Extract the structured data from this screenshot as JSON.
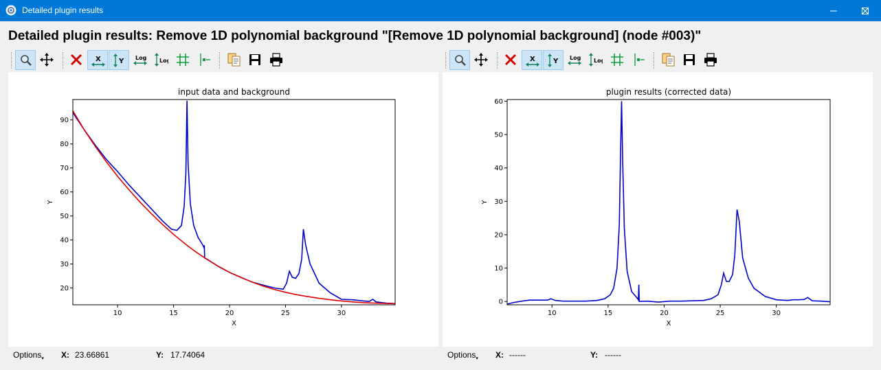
{
  "window": {
    "title": "Detailed plugin results",
    "controls": [
      "minimize-icon",
      "maximize-icon",
      "close-icon"
    ]
  },
  "heading": "Detailed plugin results: Remove 1D polynomial background \"[Remove 1D polynomial background] (node #003)\"",
  "toolbar_icons": [
    "zoom-icon",
    "pan-icon",
    "clear-icon",
    "x-autoscale-icon",
    "y-autoscale-icon",
    "x-log-icon",
    "y-log-icon",
    "grid-icon",
    "marker-icon",
    "copy-icon",
    "save-icon",
    "print-icon"
  ],
  "toolbar_log_label": "Log",
  "toolbar_x_label": "X",
  "toolbar_y_label": "Y",
  "colors": {
    "titlebar": "#0078d7",
    "series_blue": "#0000cc",
    "series_red": "#e00000",
    "active_button": "#cce4f7"
  },
  "left_status": {
    "options": "Options",
    "x_label": "X:",
    "x_value": "23.66861",
    "y_label": "Y:",
    "y_value": "17.74064"
  },
  "right_status": {
    "options": "Options",
    "x_label": "X:",
    "x_value": "------",
    "y_label": "Y:",
    "y_value": "------"
  },
  "chart_data": [
    {
      "type": "line",
      "title": "input data and background",
      "xlabel": "X",
      "ylabel": "Y",
      "xlim": [
        6.0,
        34.8
      ],
      "ylim": [
        13.0,
        98.5
      ],
      "xticks": [
        10,
        15,
        20,
        25,
        30
      ],
      "yticks": [
        20,
        30,
        40,
        50,
        60,
        70,
        80,
        90
      ],
      "grid": false,
      "series": [
        {
          "color": "#0000cc",
          "points": [
            [
              6.0,
              93
            ],
            [
              7,
              86
            ],
            [
              8,
              79.5
            ],
            [
              9,
              73.5
            ],
            [
              10,
              68.5
            ],
            [
              11,
              63
            ],
            [
              12,
              58
            ],
            [
              13,
              53
            ],
            [
              14,
              48
            ],
            [
              14.8,
              44.5
            ],
            [
              15.3,
              44
            ],
            [
              15.7,
              46
            ],
            [
              15.95,
              54
            ],
            [
              16.1,
              68
            ],
            [
              16.2,
              98
            ],
            [
              16.3,
              72
            ],
            [
              16.5,
              55
            ],
            [
              16.8,
              46
            ],
            [
              17.2,
              41
            ],
            [
              17.6,
              38
            ],
            [
              17.7,
              37
            ],
            [
              17.75,
              37.8
            ],
            [
              17.78,
              32.5
            ],
            [
              18,
              32
            ],
            [
              19,
              29
            ],
            [
              20,
              26.5
            ],
            [
              21,
              24.5
            ],
            [
              22,
              22.5
            ],
            [
              23,
              21.2
            ],
            [
              24,
              20
            ],
            [
              24.8,
              19.5
            ],
            [
              25.1,
              22
            ],
            [
              25.35,
              27
            ],
            [
              25.6,
              24.5
            ],
            [
              25.9,
              24
            ],
            [
              26.2,
              26
            ],
            [
              26.45,
              32
            ],
            [
              26.6,
              44.5
            ],
            [
              26.8,
              38
            ],
            [
              27.2,
              30
            ],
            [
              28,
              22
            ],
            [
              29,
              18
            ],
            [
              30,
              15.3
            ],
            [
              31,
              15.1
            ],
            [
              32,
              14.6
            ],
            [
              32.5,
              14.4
            ],
            [
              32.8,
              15.3
            ],
            [
              33.1,
              14.2
            ],
            [
              34,
              13.7
            ],
            [
              34.8,
              13.5
            ]
          ]
        },
        {
          "color": "#e00000",
          "points": [
            [
              6.0,
              93.8
            ],
            [
              7,
              86
            ],
            [
              8,
              79
            ],
            [
              9,
              72.5
            ],
            [
              10,
              66.5
            ],
            [
              11,
              61
            ],
            [
              12,
              55.8
            ],
            [
              13,
              51
            ],
            [
              14,
              46.5
            ],
            [
              15,
              42.3
            ],
            [
              16,
              38.5
            ],
            [
              17,
              35
            ],
            [
              18,
              31.9
            ],
            [
              19,
              29
            ],
            [
              20,
              26.5
            ],
            [
              21,
              24.4
            ],
            [
              22,
              22.5
            ],
            [
              23,
              20.8
            ],
            [
              24,
              19.4
            ],
            [
              25,
              18.2
            ],
            [
              26,
              17.2
            ],
            [
              27,
              16.4
            ],
            [
              28,
              15.7
            ],
            [
              29,
              15.1
            ],
            [
              30,
              14.6
            ],
            [
              31,
              14.2
            ],
            [
              32,
              13.9
            ],
            [
              33,
              13.7
            ],
            [
              34,
              13.55
            ],
            [
              34.8,
              13.5
            ]
          ]
        }
      ]
    },
    {
      "type": "line",
      "title": "plugin results (corrected data)",
      "xlabel": "X",
      "ylabel": "Y",
      "xlim": [
        6.0,
        34.8
      ],
      "ylim": [
        -1.0,
        60.5
      ],
      "xticks": [
        10,
        15,
        20,
        25,
        30
      ],
      "yticks": [
        0,
        10,
        20,
        30,
        40,
        50,
        60
      ],
      "grid": false,
      "series": [
        {
          "color": "#0000cc",
          "points": [
            [
              6.0,
              -0.8
            ],
            [
              6.6,
              -0.3
            ],
            [
              7.3,
              0.1
            ],
            [
              8,
              0.4
            ],
            [
              8.8,
              0.4
            ],
            [
              9.6,
              0.4
            ],
            [
              9.9,
              0.8
            ],
            [
              10.3,
              0.3
            ],
            [
              11,
              0.1
            ],
            [
              12,
              0.1
            ],
            [
              13,
              0.1
            ],
            [
              14,
              0.3
            ],
            [
              14.7,
              0.8
            ],
            [
              15.2,
              2
            ],
            [
              15.5,
              4
            ],
            [
              15.8,
              10
            ],
            [
              16.0,
              23
            ],
            [
              16.1,
              42
            ],
            [
              16.2,
              60
            ],
            [
              16.3,
              42
            ],
            [
              16.45,
              22
            ],
            [
              16.7,
              9
            ],
            [
              17.1,
              3
            ],
            [
              17.6,
              1
            ],
            [
              17.7,
              0.5
            ],
            [
              17.74,
              5
            ],
            [
              17.78,
              0
            ],
            [
              18.5,
              0.1
            ],
            [
              19.5,
              -0.2
            ],
            [
              20.5,
              0.1
            ],
            [
              21.5,
              0.1
            ],
            [
              22.5,
              0.2
            ],
            [
              23.5,
              0.3
            ],
            [
              24.2,
              0.8
            ],
            [
              24.8,
              2
            ],
            [
              25.1,
              5
            ],
            [
              25.3,
              8.5
            ],
            [
              25.55,
              6
            ],
            [
              25.8,
              6
            ],
            [
              26.1,
              8
            ],
            [
              26.3,
              14
            ],
            [
              26.5,
              27.5
            ],
            [
              26.7,
              24
            ],
            [
              27.0,
              13
            ],
            [
              27.5,
              7
            ],
            [
              28,
              4
            ],
            [
              29,
              1.5
            ],
            [
              30,
              0.5
            ],
            [
              31,
              0.3
            ],
            [
              31.5,
              0.5
            ],
            [
              32,
              0.5
            ],
            [
              32.5,
              0.6
            ],
            [
              32.8,
              1.2
            ],
            [
              33.2,
              0.2
            ],
            [
              34,
              0.1
            ],
            [
              34.8,
              -0.1
            ]
          ]
        }
      ]
    }
  ]
}
